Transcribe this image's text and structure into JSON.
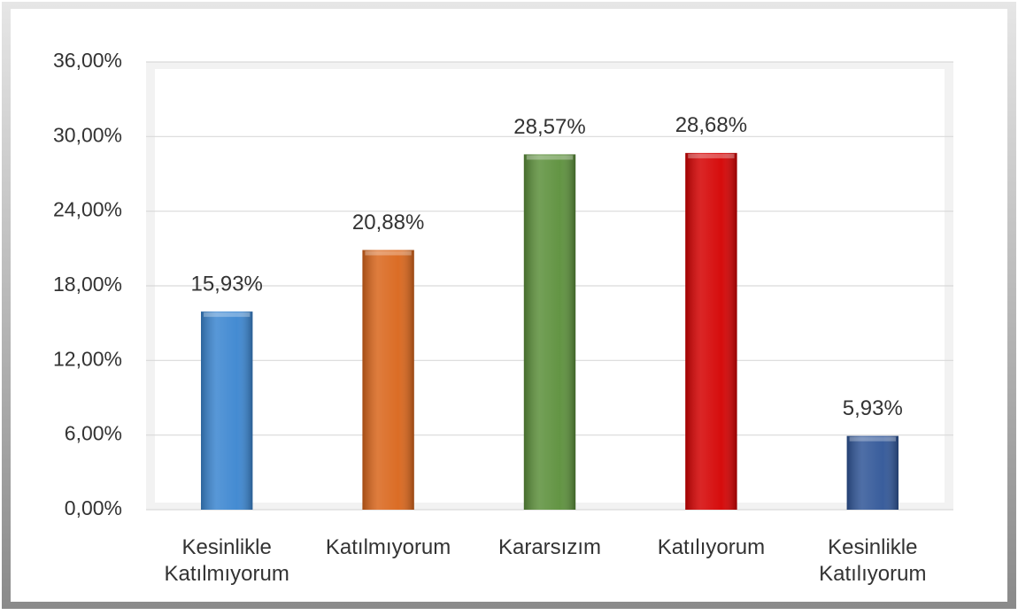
{
  "chart_data": {
    "type": "bar",
    "categories": [
      "Kesinlikle Katılmıyorum",
      "Katılmıyorum",
      "Kararsızım",
      "Katılıyorum",
      "Kesinlikle Katılıyorum"
    ],
    "values": [
      15.93,
      20.88,
      28.57,
      28.68,
      5.93
    ],
    "value_labels": [
      "15,93%",
      "20,88%",
      "28,57%",
      "28,68%",
      "5,93%"
    ],
    "colors": [
      "#3a85d0",
      "#d9651a",
      "#5b8f3a",
      "#d40000",
      "#2f5597"
    ],
    "ylim": [
      0,
      36
    ],
    "yticks": [
      {
        "value": 0,
        "label": "0,00%"
      },
      {
        "value": 6,
        "label": "6,00%"
      },
      {
        "value": 12,
        "label": "12,00%"
      },
      {
        "value": 18,
        "label": "18,00%"
      },
      {
        "value": 24,
        "label": "24,00%"
      },
      {
        "value": 30,
        "label": "30,00%"
      },
      {
        "value": 36,
        "label": "36,00%"
      }
    ],
    "grid": true
  }
}
